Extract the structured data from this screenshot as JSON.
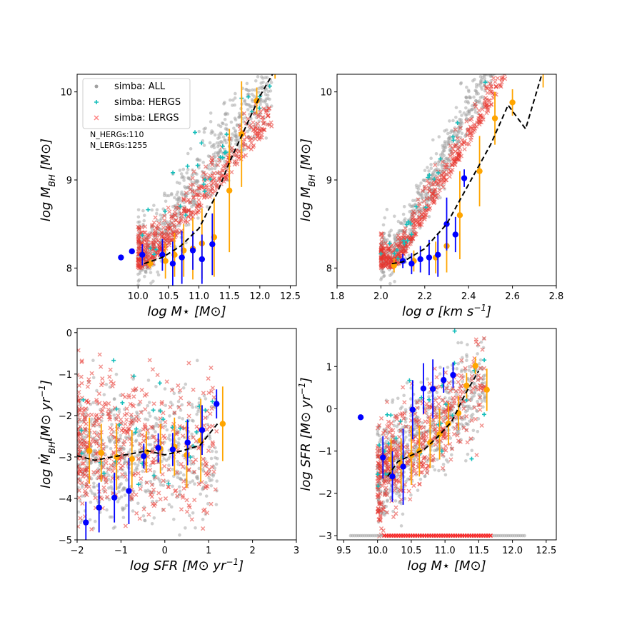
{
  "chart_data": [
    {
      "type": "scatter",
      "panel": "top-left",
      "xlabel": "log M⋆ [M⊙]",
      "ylabel": "log M_BH [M⊙]",
      "xlim": [
        9.0,
        12.6
      ],
      "ylim": [
        7.8,
        10.2
      ],
      "xticks": [
        10.0,
        10.5,
        11.0,
        11.5,
        12.0,
        12.5
      ],
      "xtick_labels": [
        "10.0",
        "10.5",
        "11.0",
        "11.5",
        "12.0",
        "12.5"
      ],
      "yticks": [
        8,
        9,
        10
      ],
      "ytick_labels": [
        "8",
        "9",
        "10"
      ],
      "legend": {
        "placement": "upper-left",
        "entries": [
          {
            "label": "simba: ALL",
            "marker": "circle",
            "color": "#a0a0a0"
          },
          {
            "label": "simba: HERGS",
            "marker": "plus",
            "color": "#17bebb"
          },
          {
            "label": "simba: LERGS",
            "marker": "x",
            "color": "#ff8080"
          }
        ]
      },
      "annotations": [
        "N_HERGs:110",
        "N_LERGs:1255"
      ],
      "cloud": {
        "xmin": 10.0,
        "xmax": 12.2,
        "base": 8.0,
        "spread": 0.35,
        "slope": 0.95,
        "pivot": 10.2
      },
      "median_line": {
        "x": [
          10.1,
          10.4,
          10.7,
          11.0,
          11.3,
          11.5,
          11.8,
          12.0,
          12.25
        ],
        "y": [
          8.05,
          8.12,
          8.25,
          8.45,
          8.85,
          9.2,
          9.65,
          9.95,
          10.25
        ]
      },
      "hergs_bins": {
        "x": [
          9.72,
          9.9,
          10.07,
          10.4,
          10.57,
          10.72,
          10.9,
          11.05,
          11.22
        ],
        "y": [
          8.12,
          8.19,
          8.15,
          8.15,
          8.05,
          8.12,
          8.2,
          8.1,
          8.27
        ],
        "err": [
          0.0,
          0.0,
          0.12,
          0.18,
          0.25,
          0.3,
          0.22,
          0.28,
          0.35
        ]
      },
      "lergs_bins": {
        "x": [
          10.2,
          10.45,
          10.6,
          10.75,
          10.9,
          11.05,
          11.25,
          11.5,
          11.7,
          11.95,
          12.25
        ],
        "y": [
          8.05,
          8.08,
          8.15,
          8.2,
          8.22,
          8.28,
          8.35,
          8.88,
          9.52,
          9.9,
          10.25
        ],
        "err": [
          0.05,
          0.2,
          0.25,
          0.3,
          0.35,
          0.4,
          0.45,
          0.7,
          0.6,
          0.15,
          0.1
        ]
      }
    },
    {
      "type": "scatter",
      "panel": "top-right",
      "xlabel": "log σ [km s⁻¹]",
      "ylabel": "log M_BH [M⊙]",
      "xlim": [
        1.8,
        2.8
      ],
      "ylim": [
        7.8,
        10.2
      ],
      "xticks": [
        1.8,
        2.0,
        2.2,
        2.4,
        2.6,
        2.8
      ],
      "xtick_labels": [
        "1.8",
        "2.0",
        "2.2",
        "2.4",
        "2.6",
        "2.8"
      ],
      "yticks": [
        8,
        9,
        10
      ],
      "ytick_labels": [
        "8",
        "9",
        "10"
      ],
      "cloud": {
        "xmin": 2.0,
        "xmax": 2.6,
        "base": 8.0,
        "spread": 0.25,
        "slope": 5.0,
        "pivot": 2.07
      },
      "median_line": {
        "x": [
          2.05,
          2.1,
          2.2,
          2.3,
          2.4,
          2.5,
          2.58,
          2.66,
          2.74
        ],
        "y": [
          8.05,
          8.07,
          8.22,
          8.5,
          8.95,
          9.4,
          9.85,
          9.58,
          10.25
        ]
      },
      "hergs_bins": {
        "x": [
          2.1,
          2.14,
          2.18,
          2.22,
          2.26,
          2.3,
          2.34,
          2.38
        ],
        "y": [
          8.08,
          8.05,
          8.1,
          8.12,
          8.15,
          8.5,
          8.38,
          9.02
        ],
        "err": [
          0.08,
          0.12,
          0.15,
          0.2,
          0.25,
          0.3,
          0.2,
          0.1
        ]
      },
      "lergs_bins": {
        "x": [
          2.06,
          2.15,
          2.25,
          2.3,
          2.36,
          2.45,
          2.52,
          2.6,
          2.74
        ],
        "y": [
          8.03,
          8.08,
          8.12,
          8.25,
          8.6,
          9.1,
          9.7,
          9.88,
          10.3
        ],
        "err": [
          0.08,
          0.12,
          0.18,
          0.3,
          0.5,
          0.4,
          0.3,
          0.15,
          0.25
        ]
      }
    },
    {
      "type": "scatter",
      "panel": "bottom-left",
      "xlabel": "log SFR [M⊙ yr⁻¹]",
      "ylabel": "log Ṁ_BH[M⊙ yr⁻¹]",
      "xlim": [
        -2.0,
        3.0
      ],
      "ylim": [
        -5.0,
        0.1
      ],
      "xticks": [
        -2,
        -1,
        0,
        1,
        2,
        3
      ],
      "xtick_labels": [
        "−2",
        "−1",
        "0",
        "1",
        "2",
        "3"
      ],
      "yticks": [
        -5,
        -4,
        -3,
        -2,
        -1,
        0
      ],
      "ytick_labels": [
        "−5",
        "−4",
        "−3",
        "−2",
        "−1",
        "0"
      ],
      "cloud": {
        "xmin": -2.0,
        "xmax": 1.2,
        "base": -2.7,
        "spread": 1.1,
        "slope": 0.0,
        "pivot": 0.0
      },
      "median_line": {
        "x": [
          -2.0,
          -1.6,
          -1.2,
          -0.8,
          -0.4,
          0.0,
          0.4,
          0.8,
          1.2
        ],
        "y": [
          -2.97,
          -3.08,
          -3.0,
          -2.93,
          -2.85,
          -2.95,
          -2.85,
          -2.72,
          -2.2
        ]
      },
      "hergs_bins": {
        "x": [
          -1.8,
          -1.5,
          -1.15,
          -0.82,
          -0.48,
          -0.15,
          0.18,
          0.52,
          0.85,
          1.18
        ],
        "y": [
          -4.58,
          -4.22,
          -3.98,
          -3.82,
          -2.98,
          -2.78,
          -2.82,
          -2.65,
          -2.35,
          -1.72
        ],
        "err": [
          0.5,
          0.6,
          0.6,
          0.8,
          0.3,
          0.35,
          0.4,
          0.55,
          0.6,
          0.35
        ]
      },
      "lergs_bins": {
        "x": [
          -1.72,
          -1.45,
          -1.1,
          -0.75,
          -0.42,
          -0.1,
          0.22,
          0.5,
          0.82,
          1.32
        ],
        "y": [
          -2.85,
          -2.9,
          -3.0,
          -3.05,
          -2.88,
          -2.8,
          -2.75,
          -2.95,
          -2.6,
          -2.2
        ],
        "err": [
          0.8,
          0.7,
          0.8,
          0.7,
          0.5,
          0.6,
          0.7,
          0.8,
          1.0,
          0.9
        ]
      }
    },
    {
      "type": "scatter",
      "panel": "bottom-right",
      "xlabel": "log M⋆ [M⊙]",
      "ylabel": "log SFR [M⊙ yr⁻¹]",
      "xlim": [
        9.4,
        12.65
      ],
      "ylim": [
        -3.1,
        1.9
      ],
      "xticks": [
        9.5,
        10.0,
        10.5,
        11.0,
        11.5,
        12.0,
        12.5
      ],
      "xtick_labels": [
        "9.5",
        "10.0",
        "10.5",
        "11.0",
        "11.5",
        "12.0",
        "12.5"
      ],
      "yticks": [
        -3,
        -2,
        -1,
        0,
        1
      ],
      "ytick_labels": [
        "−3",
        "−2",
        "−1",
        "0",
        "1"
      ],
      "cloud": {
        "xmin": 10.0,
        "xmax": 11.6,
        "base": -1.6,
        "spread": 1.6,
        "slope": 1.4,
        "pivot": 10.0
      },
      "floor": {
        "y": -3.0,
        "xmin": 9.6,
        "xmax": 12.2
      },
      "median_line": {
        "x": [
          10.15,
          10.3,
          10.5,
          10.7,
          10.9,
          11.1,
          11.3,
          11.5
        ],
        "y": [
          -1.6,
          -1.25,
          -1.1,
          -0.95,
          -0.65,
          -0.3,
          0.35,
          0.9
        ]
      },
      "hergs_bins": {
        "x": [
          9.75,
          10.08,
          10.22,
          10.38,
          10.52,
          10.68,
          10.82,
          10.98,
          11.12
        ],
        "y": [
          -0.2,
          -1.15,
          -1.6,
          -1.37,
          -0.02,
          0.48,
          0.47,
          0.68,
          0.8
        ],
        "err": [
          0.0,
          0.5,
          0.6,
          0.9,
          0.7,
          0.6,
          0.7,
          0.3,
          0.3
        ]
      },
      "lergs_bins": {
        "x": [
          10.2,
          10.35,
          10.5,
          10.62,
          10.78,
          10.92,
          11.05,
          11.2,
          11.32,
          11.45,
          11.62
        ],
        "y": [
          -1.2,
          -1.3,
          -1.1,
          -1.0,
          -0.8,
          -0.6,
          -0.35,
          -0.1,
          0.55,
          1.02,
          0.45
        ],
        "err": [
          0.5,
          0.6,
          0.7,
          0.6,
          0.6,
          0.6,
          0.5,
          0.4,
          0.3,
          0.2,
          0.5
        ]
      }
    }
  ]
}
